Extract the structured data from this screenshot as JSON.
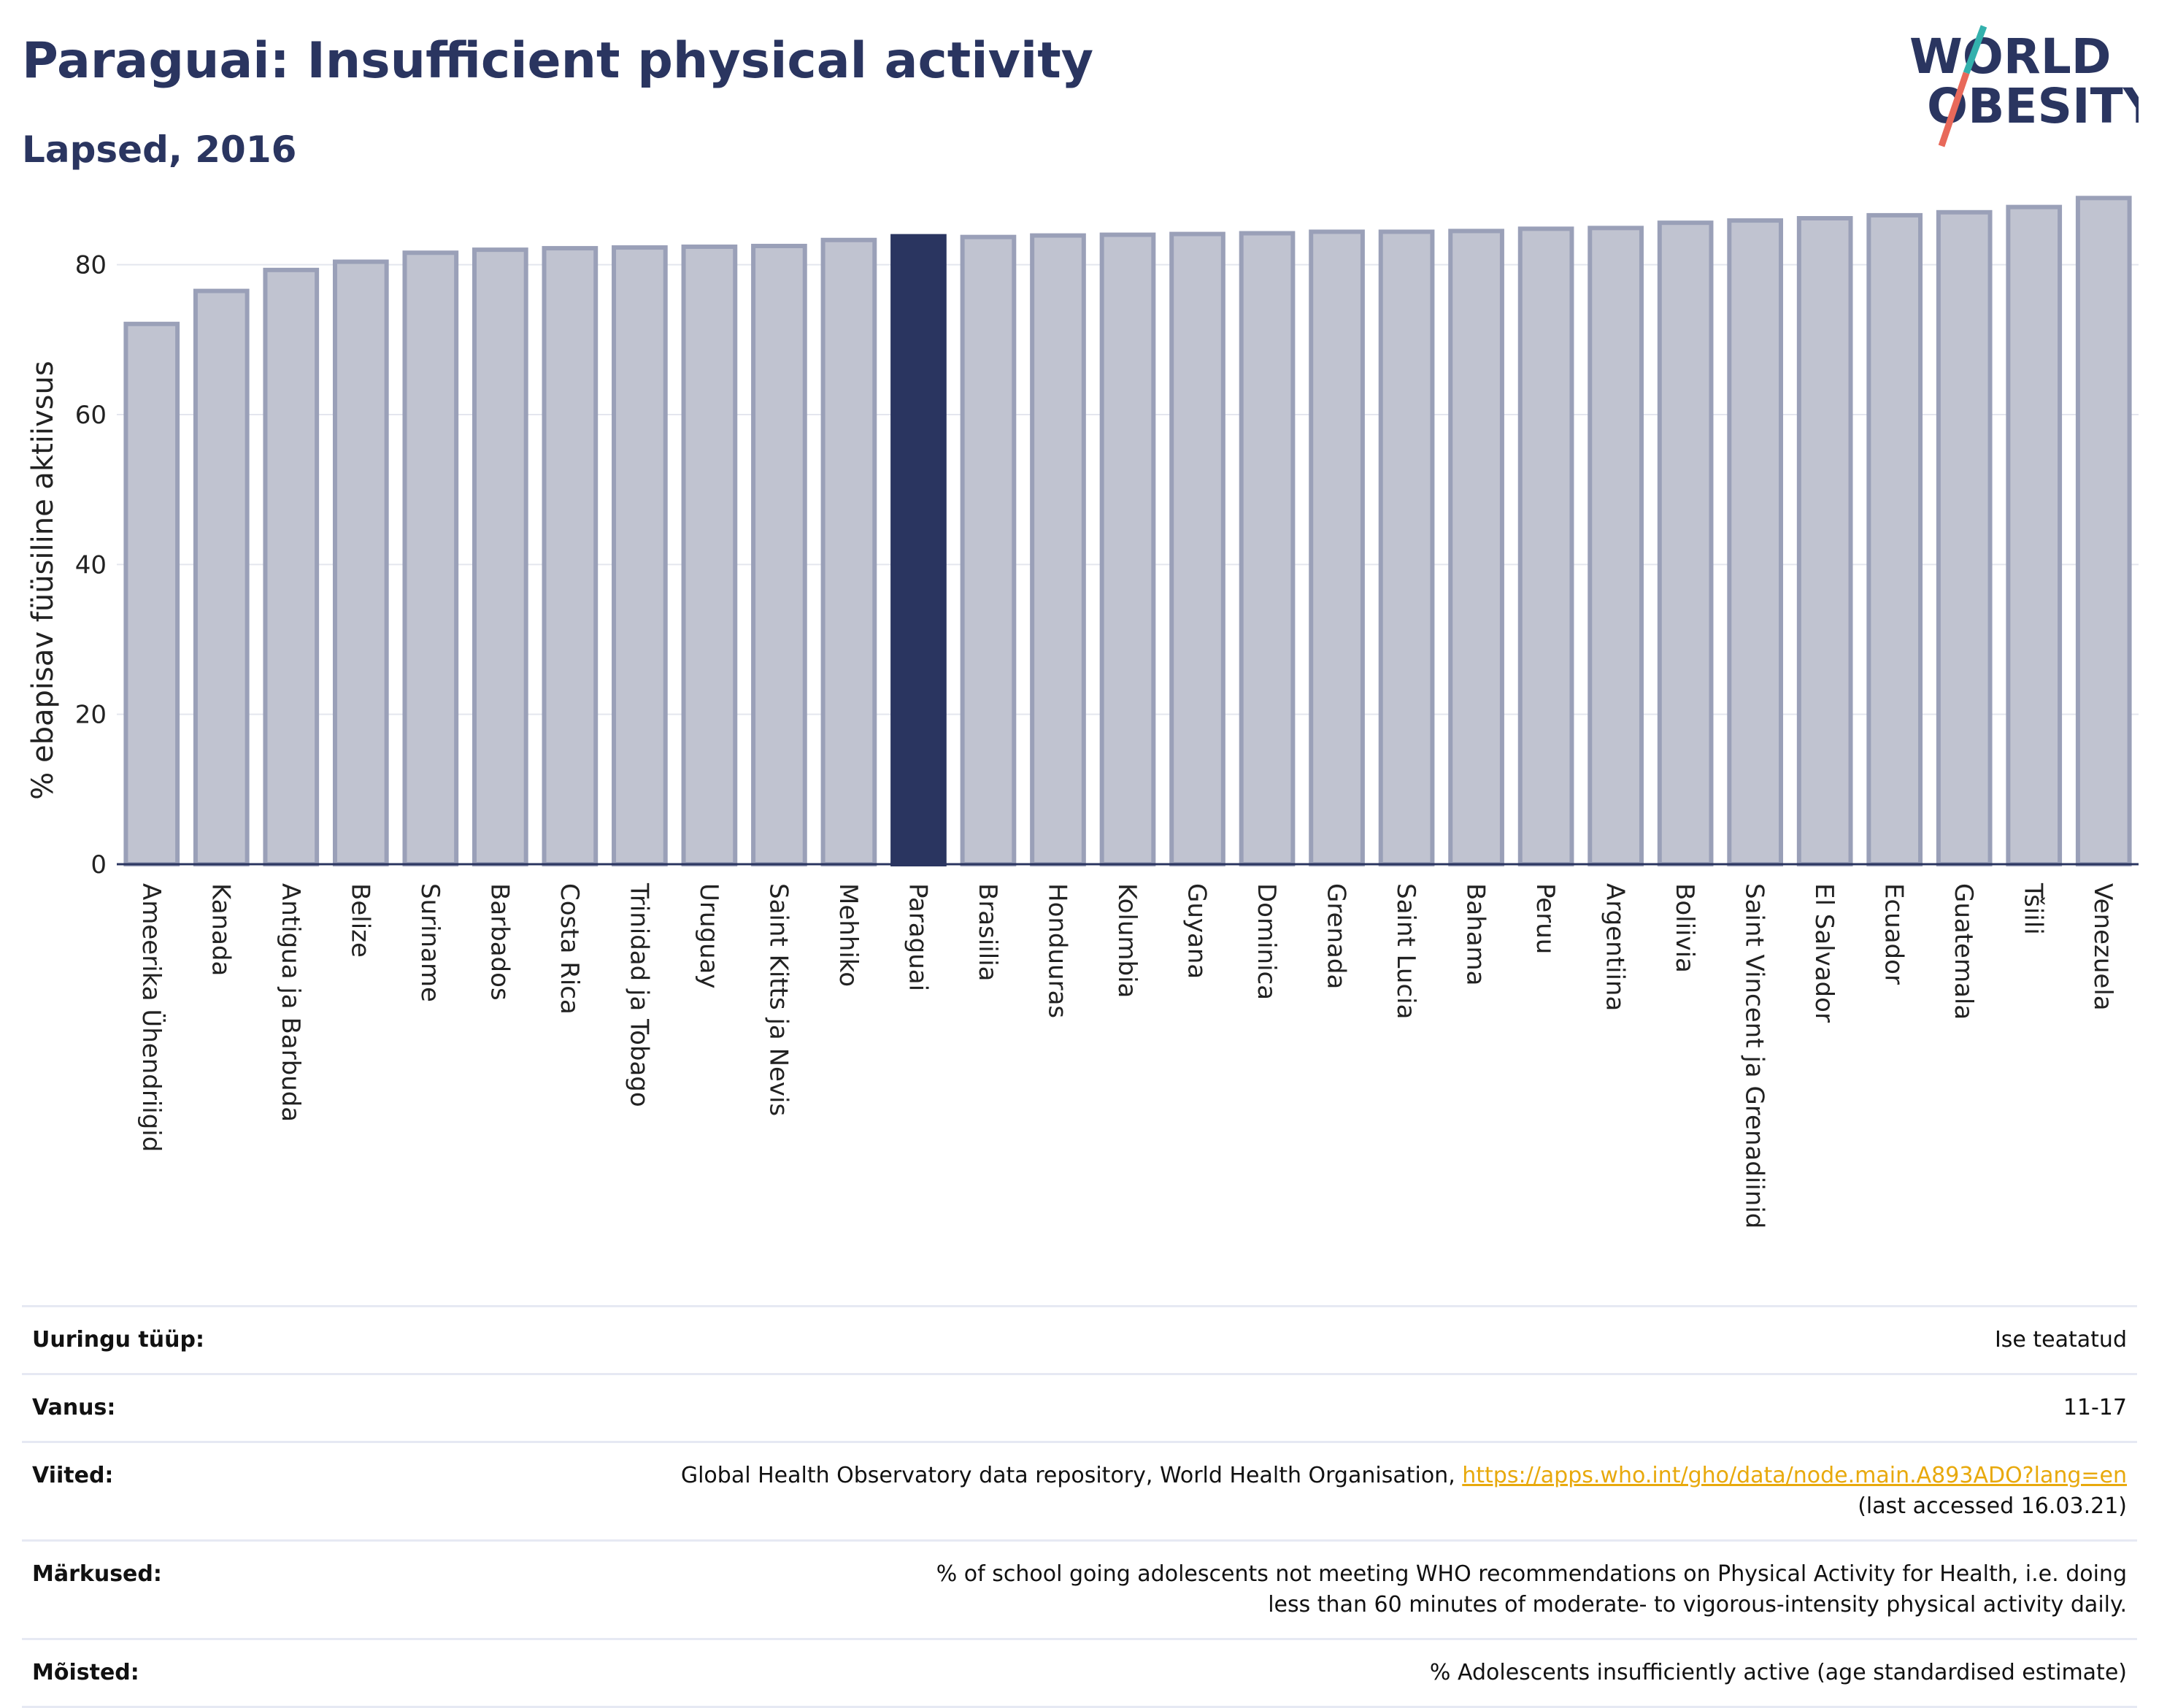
{
  "header": {
    "title": "Paraguai: Insufficient physical activity",
    "subtitle": "Lapsed, 2016"
  },
  "logo": {
    "line1": "WORLD",
    "line2": "OBESITY"
  },
  "colors": {
    "highlight_bar": "#2a3560",
    "other_bar": "#c0c3d0",
    "other_bar_stroke": "#9aa0b8",
    "title": "#2a3560",
    "link": "#e8a90c",
    "logo_teal": "#33b1ad",
    "logo_red": "#e8695a"
  },
  "chart_data": {
    "type": "bar",
    "title": "Paraguai: Insufficient physical activity",
    "subtitle": "Lapsed, 2016",
    "ylabel": "% ebapisav füüsiline aktiivsus",
    "xlabel": "",
    "ylim": [
      0,
      90
    ],
    "yticks": [
      0,
      20,
      40,
      60,
      80
    ],
    "grid": true,
    "highlight": "Paraguai",
    "categories": [
      "Ameerika Ühendriigid",
      "Kanada",
      "Antigua ja Barbuda",
      "Belize",
      "Suriname",
      "Barbados",
      "Costa Rica",
      "Trinidad ja Tobago",
      "Uruguay",
      "Saint Kitts ja Nevis",
      "Mehhiko",
      "Paraguai",
      "Brasiilia",
      "Honduuras",
      "Kolumbia",
      "Guyana",
      "Dominica",
      "Grenada",
      "Saint Lucia",
      "Bahama",
      "Peruu",
      "Argentiina",
      "Boliivia",
      "Saint Vincent ja Grenadiinid",
      "El Salvador",
      "Ecuador",
      "Guatemala",
      "Tšiili",
      "Venezuela"
    ],
    "values": [
      72.1,
      76.5,
      79.3,
      80.4,
      81.6,
      82.0,
      82.2,
      82.3,
      82.4,
      82.5,
      83.3,
      83.8,
      83.7,
      83.9,
      84.0,
      84.1,
      84.2,
      84.4,
      84.4,
      84.5,
      84.8,
      84.9,
      85.6,
      85.9,
      86.2,
      86.6,
      87.0,
      87.7,
      88.9
    ]
  },
  "metadata": [
    {
      "key": "Uuringu tüüp:",
      "value": "Ise teatatud"
    },
    {
      "key": "Vanus:",
      "value": "11-17"
    },
    {
      "key": "Viited:",
      "value": "Global Health Observatory data repository, World Health Organisation, ",
      "link": "https://apps.who.int/gho/data/node.main.A893ADO?lang=en",
      "value_after": "(last accessed 16.03.21)"
    },
    {
      "key": "Märkused:",
      "value": "% of school going adolescents not meeting WHO recommendations on Physical Activity for Health, i.e. doing less than 60 minutes of moderate- to vigorous-intensity physical activity daily."
    },
    {
      "key": "Mõisted:",
      "value": "% Adolescents insufficiently active (age standardised estimate)"
    }
  ]
}
